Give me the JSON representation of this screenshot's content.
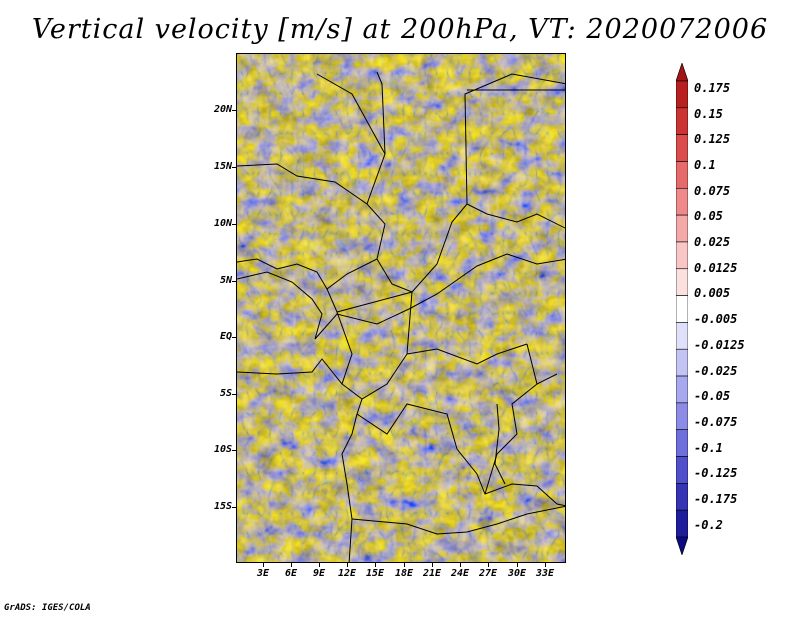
{
  "title": "Vertical velocity [m/s] at 200hPa, VT: 2020072006",
  "credit": "GrADS: IGES/COLA",
  "map": {
    "region": "Central Africa",
    "field": "vertical velocity",
    "pressure_level": "200hPa",
    "valid_time": "2020072006",
    "lat_labels": [
      "20N",
      "15N",
      "10N",
      "5N",
      "EQ",
      "5S",
      "10S",
      "15S"
    ],
    "lon_labels": [
      "3E",
      "6E",
      "9E",
      "12E",
      "15E",
      "18E",
      "21E",
      "24E",
      "27E",
      "30E",
      "33E"
    ]
  },
  "colorbar": {
    "labels": [
      "0.175",
      "0.15",
      "0.125",
      "0.1",
      "0.075",
      "0.05",
      "0.025",
      "0.0125",
      "0.005",
      "-0.005",
      "-0.0125",
      "-0.025",
      "-0.05",
      "-0.075",
      "-0.1",
      "-0.125",
      "-0.175",
      "-0.2"
    ],
    "colors": [
      "#a01616",
      "#b82020",
      "#cc3434",
      "#dc4c4c",
      "#e66a6a",
      "#ee8a8a",
      "#f4a8a8",
      "#f8c6c6",
      "#fbe0e0",
      "#ffffff",
      "#e0e0fb",
      "#c4c4f4",
      "#a8a8ee",
      "#8c8ce6",
      "#6e6edc",
      "#5050cc",
      "#3434b4",
      "#1e1e9c",
      "#0c0c80"
    ]
  }
}
